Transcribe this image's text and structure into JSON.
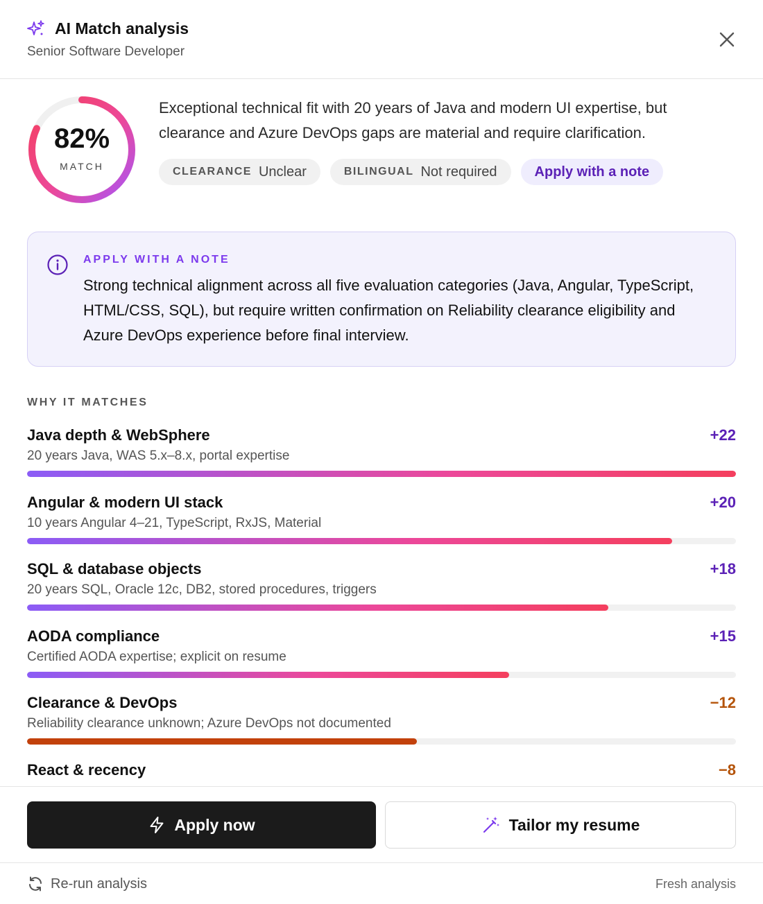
{
  "header": {
    "title": "AI Match analysis",
    "subtitle": "Senior Software Developer"
  },
  "score": {
    "value_text": "82%",
    "percent": 82,
    "label": "MATCH"
  },
  "summary": "Exceptional technical fit with 20 years of Java and modern UI expertise, but clearance and Azure DevOps gaps are material and require clarification.",
  "chips": [
    {
      "key": "CLEARANCE",
      "value": "Unclear"
    },
    {
      "key": "BILINGUAL",
      "value": "Not required"
    }
  ],
  "recommendation_chip": "Apply with a note",
  "note": {
    "label": "APPLY WITH A NOTE",
    "text": "Strong technical alignment across all five evaluation categories (Java, Angular, TypeScript, HTML/CSS, SQL), but require written confirmation on Reliability clearance eligibility and Azure DevOps experience before final interview."
  },
  "matches_label": "WHY IT MATCHES",
  "matches": [
    {
      "title": "Java depth & WebSphere",
      "desc": "20 years Java, WAS 5.x–8.x, portal expertise",
      "score": "+22",
      "fill_percent": 100,
      "negative": false
    },
    {
      "title": "Angular & modern UI stack",
      "desc": "10 years Angular 4–21, TypeScript, RxJS, Material",
      "score": "+20",
      "fill_percent": 91,
      "negative": false
    },
    {
      "title": "SQL & database objects",
      "desc": "20 years SQL, Oracle 12c, DB2, stored procedures, triggers",
      "score": "+18",
      "fill_percent": 82,
      "negative": false
    },
    {
      "title": "AODA compliance",
      "desc": "Certified AODA expertise; explicit on resume",
      "score": "+15",
      "fill_percent": 68,
      "negative": false
    },
    {
      "title": "Clearance & DevOps",
      "desc": "Reliability clearance unknown; Azure DevOps not documented",
      "score": "−12",
      "fill_percent": 55,
      "negative": true
    },
    {
      "title": "React & recency",
      "desc": "",
      "score": "−8",
      "fill_percent": 36,
      "negative": true
    }
  ],
  "buttons": {
    "apply": "Apply now",
    "tailor": "Tailor my resume"
  },
  "footer": {
    "rerun": "Re-run analysis",
    "status": "Fresh analysis"
  },
  "colors": {
    "accent": "#5b21b6",
    "positive": "#5b21b6",
    "negative": "#b45309",
    "gradient_start": "#8b5cf6",
    "gradient_end": "#f43f5e"
  },
  "icons": [
    "sparkle-icon",
    "close-icon",
    "info-icon",
    "lightning-icon",
    "magic-wand-icon",
    "refresh-icon"
  ]
}
